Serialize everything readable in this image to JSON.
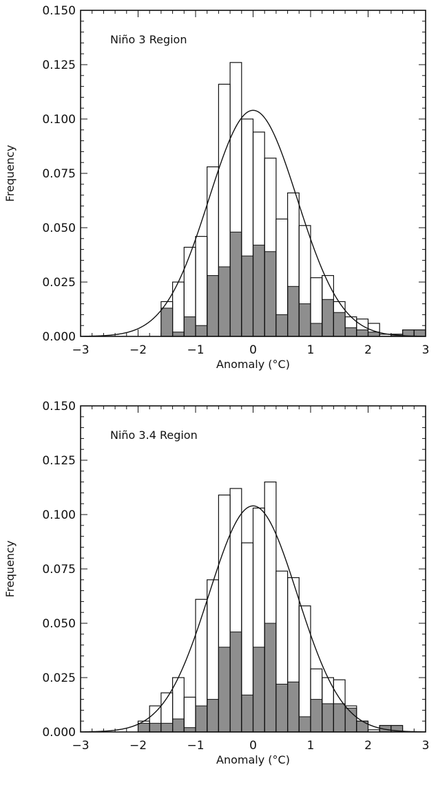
{
  "chart_data": [
    {
      "type": "bar",
      "title": "Niño 3 Region",
      "xlabel": "Anomaly (°C)",
      "ylabel": "Frequency",
      "xlim": [
        -3,
        3
      ],
      "ylim": [
        0,
        0.15
      ],
      "xticks": [
        "−3",
        "−2",
        "−1",
        "0",
        "1",
        "2",
        "3"
      ],
      "yticks": [
        "0.000",
        "0.025",
        "0.050",
        "0.075",
        "0.100",
        "0.125",
        "0.150"
      ],
      "bin_width": 0.2,
      "bin_centers": [
        -1.5,
        -1.3,
        -1.1,
        -0.9,
        -0.7,
        -0.5,
        -0.3,
        -0.1,
        0.1,
        0.3,
        0.5,
        0.7,
        0.9,
        1.1,
        1.3,
        1.5,
        1.7,
        1.9,
        2.1,
        2.3,
        2.5,
        2.7,
        2.9
      ],
      "series": [
        {
          "style": "outline",
          "values": [
            0.016,
            0.025,
            0.041,
            0.046,
            0.078,
            0.116,
            0.126,
            0.1,
            0.094,
            0.082,
            0.054,
            0.066,
            0.051,
            0.027,
            0.028,
            0.016,
            0.009,
            0.008,
            0.006,
            0.001,
            0.001,
            0.003,
            0.003
          ]
        },
        {
          "style": "shaded",
          "values": [
            0.013,
            0.002,
            0.009,
            0.005,
            0.028,
            0.032,
            0.048,
            0.037,
            0.042,
            0.039,
            0.01,
            0.023,
            0.015,
            0.006,
            0.017,
            0.011,
            0.004,
            0.003,
            0.002,
            0.0,
            0.001,
            0.003,
            0.003
          ]
        }
      ],
      "curve": {
        "type": "normal",
        "mean": 0.0,
        "peak": 0.104,
        "sd": 0.77
      },
      "grid": false,
      "colors": {
        "shaded": "#8e8e8e",
        "outline": "#111111"
      }
    },
    {
      "type": "bar",
      "title": "Niño 3.4 Region",
      "xlabel": "Anomaly (°C)",
      "ylabel": "Frequency",
      "xlim": [
        -3,
        3
      ],
      "ylim": [
        0,
        0.15
      ],
      "xticks": [
        "−3",
        "−2",
        "−1",
        "0",
        "1",
        "2",
        "3"
      ],
      "yticks": [
        "0.000",
        "0.025",
        "0.050",
        "0.075",
        "0.100",
        "0.125",
        "0.150"
      ],
      "bin_width": 0.2,
      "bin_centers": [
        -1.9,
        -1.7,
        -1.5,
        -1.3,
        -1.1,
        -0.9,
        -0.7,
        -0.5,
        -0.3,
        -0.1,
        0.1,
        0.3,
        0.5,
        0.7,
        0.9,
        1.1,
        1.3,
        1.5,
        1.7,
        1.9,
        2.1,
        2.3,
        2.5
      ],
      "series": [
        {
          "style": "outline",
          "values": [
            0.005,
            0.012,
            0.018,
            0.025,
            0.016,
            0.061,
            0.07,
            0.109,
            0.112,
            0.087,
            0.103,
            0.115,
            0.074,
            0.071,
            0.058,
            0.029,
            0.025,
            0.024,
            0.012,
            0.005,
            0.001,
            0.003,
            0.003
          ]
        },
        {
          "style": "shaded",
          "values": [
            0.004,
            0.004,
            0.004,
            0.006,
            0.002,
            0.012,
            0.015,
            0.039,
            0.046,
            0.017,
            0.039,
            0.05,
            0.022,
            0.023,
            0.007,
            0.015,
            0.013,
            0.013,
            0.011,
            0.005,
            0.0,
            0.003,
            0.003
          ]
        }
      ],
      "curve": {
        "type": "normal",
        "mean": 0.0,
        "peak": 0.104,
        "sd": 0.77
      },
      "grid": false,
      "colors": {
        "shaded": "#8e8e8e",
        "outline": "#111111"
      }
    }
  ]
}
